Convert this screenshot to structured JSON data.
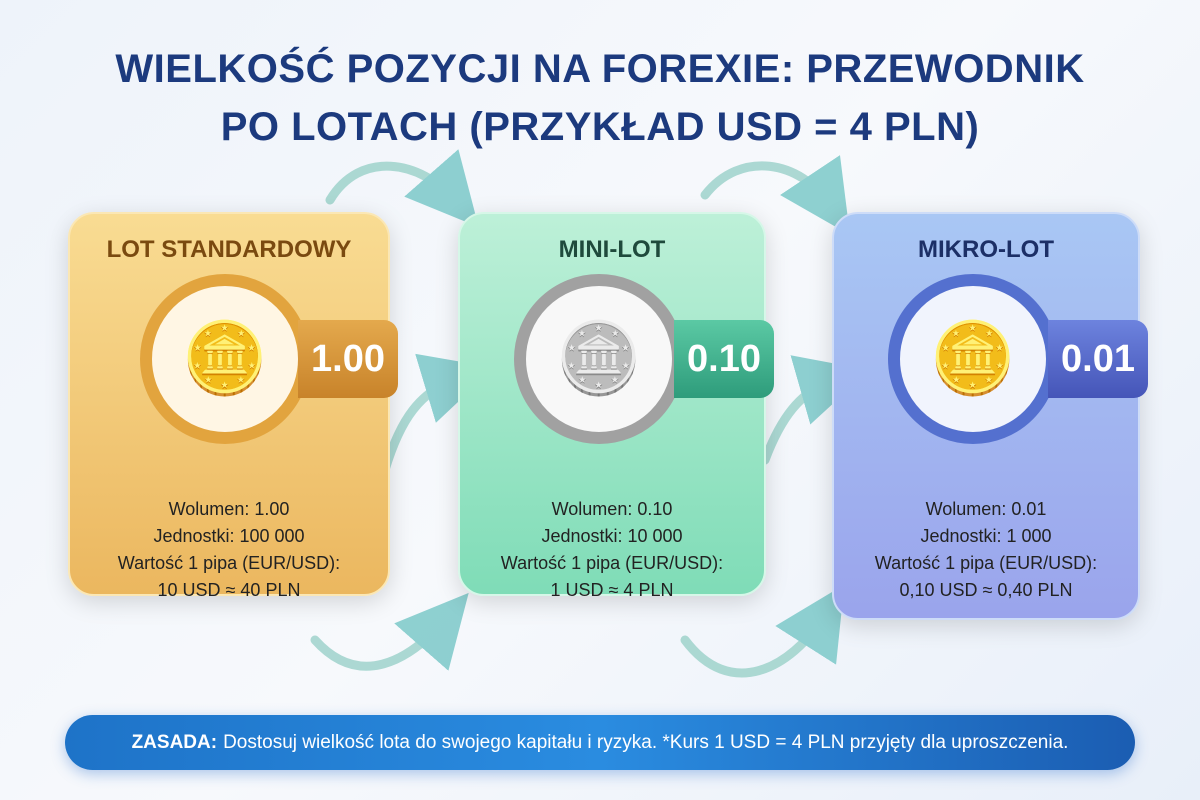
{
  "title": {
    "line1": "WIELKOŚĆ POZYCJI NA FOREXIE: PRZEWODNIK",
    "line2": "PO LOTACH (PRZYKŁAD USD = 4 PLN)"
  },
  "cards": [
    {
      "name": "LOT STANDARDOWY",
      "value": "1.00",
      "icon": "gold-coins-icon",
      "color": "#ebb75f",
      "lines": [
        "Wolumen: 1.00",
        "Jednostki: 100 000",
        "Wartość 1 pipa (EUR/USD):",
        "10 USD ≈ 40 PLN"
      ]
    },
    {
      "name": "MINI-LOT",
      "value": "0.10",
      "icon": "silver-coins-icon",
      "color": "#7fdcb7",
      "lines": [
        "Wolumen: 0.10",
        "Jednostki: 10 000",
        "Wartość 1 pipa (EUR/USD):",
        "1 USD ≈ 4 PLN"
      ]
    },
    {
      "name": "MIKRO-LOT",
      "value": "0.01",
      "icon": "bronze-coins-icon",
      "color": "#9aa4ec",
      "lines": [
        "Wolumen: 0.01",
        "Jednostki: 1 000",
        "Wartość 1 pipa (EUR/USD):",
        "0,10 USD ≈ 0,40 PLN"
      ]
    }
  ],
  "banner": {
    "label": "ZASADA:",
    "text": "Dostosuj wielkość lota do swojego kapitału i ryzyka. *Kurs 1 USD = 4 PLN przyjęty dla uproszczenia."
  }
}
